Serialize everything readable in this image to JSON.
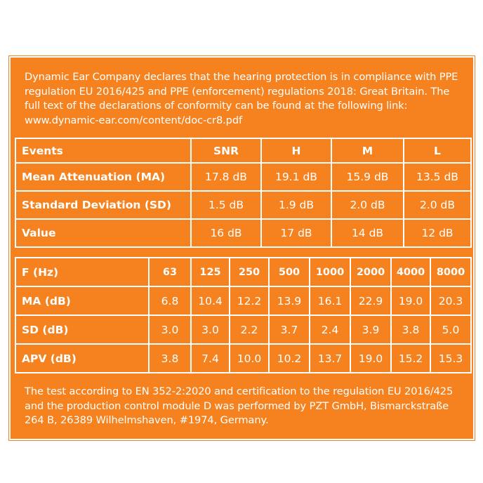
{
  "intro_text": "Dynamic Ear Company declares that the hearing protection is in compliance with PPE regulation EU 2016/425 and PPE (enforcement) regulations 2018: Great Britain. The full text of the declarations of conformity can be found at the following link:  www.dynamic-ear.com/content/doc-cr8.pdf",
  "summary_table": {
    "header": [
      "Events",
      "SNR",
      "H",
      "M",
      "L"
    ],
    "rows": [
      {
        "label": "Mean Attenuation (MA)",
        "values": [
          "17.8 dB",
          "19.1 dB",
          "15.9 dB",
          "13.5 dB"
        ]
      },
      {
        "label": "Standard Deviation (SD)",
        "values": [
          "1.5 dB",
          "1.9 dB",
          "2.0 dB",
          "2.0 dB"
        ]
      },
      {
        "label": "Value",
        "values": [
          "16 dB",
          "17 dB",
          "14 dB",
          "12 dB"
        ]
      }
    ]
  },
  "frequency_table": {
    "header": [
      "F (Hz)",
      "63",
      "125",
      "250",
      "500",
      "1000",
      "2000",
      "4000",
      "8000"
    ],
    "rows": [
      {
        "label": "MA (dB)",
        "values": [
          "6.8",
          "10.4",
          "12.2",
          "13.9",
          "16.1",
          "22.9",
          "19.0",
          "20.3"
        ]
      },
      {
        "label": "SD (dB)",
        "values": [
          "3.0",
          "3.0",
          "2.2",
          "3.7",
          "2.4",
          "3.9",
          "3.8",
          "5.0"
        ]
      },
      {
        "label": "APV (dB)",
        "values": [
          "3.8",
          "7.4",
          "10.0",
          "10.2",
          "13.7",
          "19.0",
          "15.2",
          "15.3"
        ]
      }
    ]
  },
  "footer_text": "The test according to EN 352-2:2020 and certification to the regulation EU 2016/425 and the production control module D was performed by PZT GmbH, Bismarckstraße 264 B, 26389 Wilhelmshaven, #1974, Germany.",
  "colors": {
    "background": "#f5821f",
    "text": "#ffffff"
  }
}
